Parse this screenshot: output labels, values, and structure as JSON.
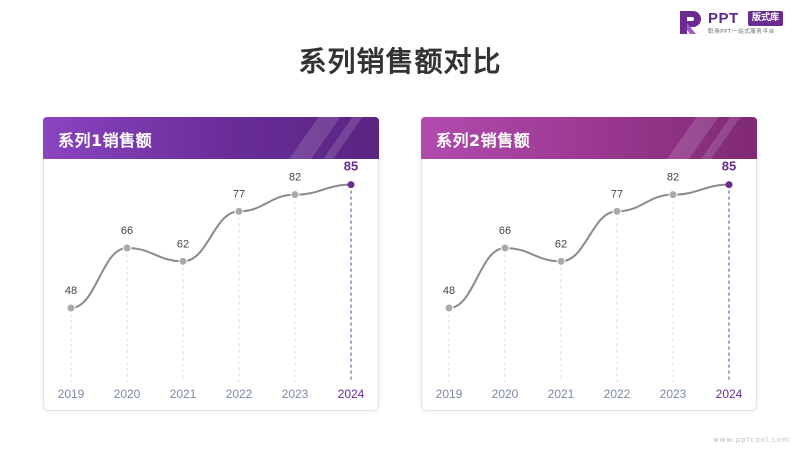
{
  "logo": {
    "brand": "PPT",
    "badge": "版式库",
    "tagline": "职场PPT一站式服务平台"
  },
  "page_title": "系列销售额对比",
  "watermark": "www.pptcool.com",
  "colors": {
    "purple": "#6a2c91",
    "line": "#8c8a8c",
    "point": "#a9a9b0",
    "tick": "#7b8aa0"
  },
  "chart_data": [
    {
      "type": "line",
      "title": "系列1销售额",
      "categories": [
        "2019",
        "2020",
        "2021",
        "2022",
        "2023",
        "2024"
      ],
      "values": [
        48,
        66,
        62,
        77,
        82,
        85
      ],
      "ylim": [
        30,
        90
      ],
      "highlight_index": 5
    },
    {
      "type": "line",
      "title": "系列2销售额",
      "categories": [
        "2019",
        "2020",
        "2021",
        "2022",
        "2023",
        "2024"
      ],
      "values": [
        48,
        66,
        62,
        77,
        82,
        85
      ],
      "ylim": [
        30,
        90
      ],
      "highlight_index": 5
    }
  ]
}
